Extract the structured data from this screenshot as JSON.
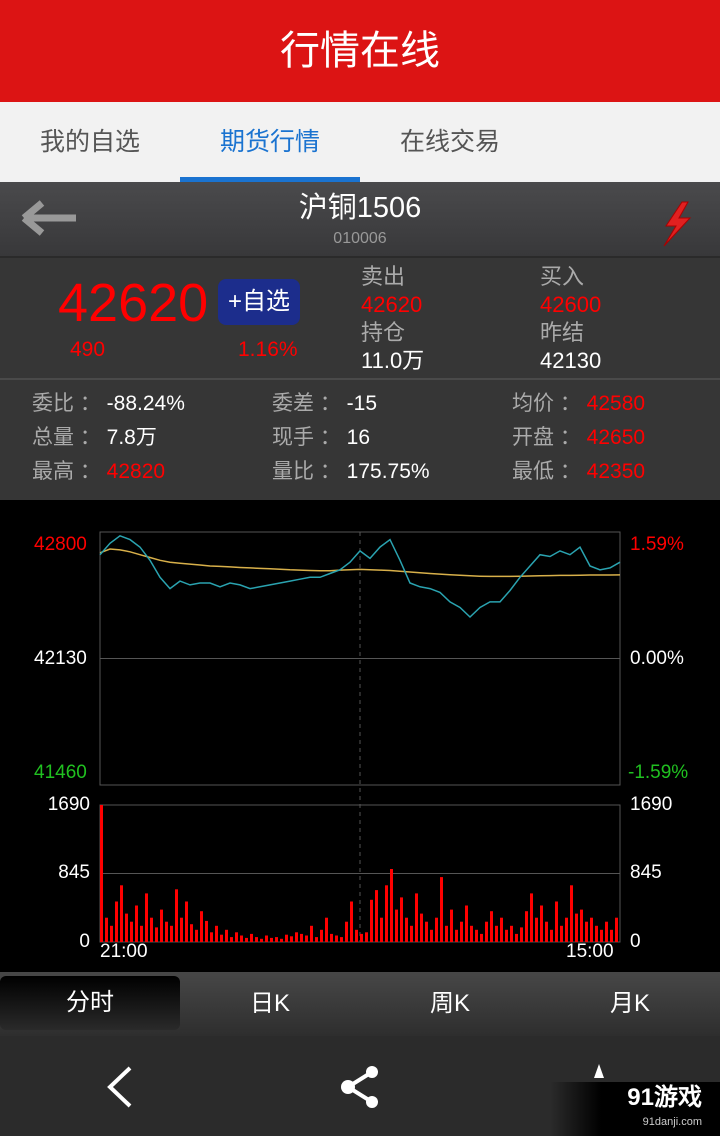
{
  "app": {
    "title": "行情在线"
  },
  "tabs": [
    {
      "label": "我的自选"
    },
    {
      "label": "期货行情",
      "active": true
    },
    {
      "label": "在线交易"
    }
  ],
  "instrument": {
    "name": "沪铜1506",
    "code": "010006",
    "icons": [
      "back-arrow-icon",
      "lightning-icon"
    ]
  },
  "quote": {
    "price": "42620",
    "change": "490",
    "change_pct": "1.16%",
    "add_watch_label": "+自选",
    "sell_label": "卖出",
    "sell": "42620",
    "buy_label": "买入",
    "buy": "42600",
    "oi_label": "持仓",
    "oi": "11.0万",
    "prev_settle_label": "昨结",
    "prev_settle": "42130"
  },
  "stats": [
    {
      "label": "委比",
      "value": "-88.24%",
      "color": "#ffffff"
    },
    {
      "label": "委差",
      "value": "-15",
      "color": "#ffffff"
    },
    {
      "label": "均价",
      "value": "42580",
      "color": "#ff0000"
    },
    {
      "label": "总量",
      "value": "7.8万",
      "color": "#ffffff"
    },
    {
      "label": "现手",
      "value": "16",
      "color": "#ffffff"
    },
    {
      "label": "开盘",
      "value": "42650",
      "color": "#ff0000"
    },
    {
      "label": "最高",
      "value": "42820",
      "color": "#ff0000"
    },
    {
      "label": "量比",
      "value": "175.75%",
      "color": "#ffffff"
    },
    {
      "label": "最低",
      "value": "42350",
      "color": "#ff0000"
    }
  ],
  "chart_data": {
    "type": "line",
    "price_axis": {
      "left_ticks": [
        "42800",
        "42130",
        "41460"
      ],
      "right_ticks": [
        "1.59%",
        "0.00%",
        "-1.59%"
      ],
      "ylim": [
        41460,
        42800
      ]
    },
    "volume_axis": {
      "ticks": [
        "1690",
        "845",
        "0"
      ],
      "ylim": [
        0,
        1690
      ]
    },
    "x_ticks": [
      "21:00",
      "15:00"
    ],
    "price": [
      42680,
      42740,
      42780,
      42760,
      42720,
      42650,
      42560,
      42500,
      42540,
      42520,
      42530,
      42530,
      42510,
      42530,
      42520,
      42500,
      42510,
      42520,
      42530,
      42540,
      42550,
      42560,
      42560,
      42580,
      42600,
      42640,
      42700,
      42660,
      42720,
      42760,
      42650,
      42530,
      42510,
      42500,
      42480,
      42430,
      42400,
      42350,
      42400,
      42430,
      42430,
      42490,
      42560,
      42620,
      42680,
      42670,
      42700,
      42680,
      42720,
      42620,
      42600,
      42610,
      42640
    ],
    "average": [
      42690,
      42710,
      42705,
      42695,
      42680,
      42665,
      42650,
      42640,
      42635,
      42630,
      42625,
      42620,
      42618,
      42615,
      42612,
      42610,
      42607,
      42605,
      42603,
      42600,
      42598,
      42596,
      42595,
      42595,
      42598,
      42600,
      42602,
      42600,
      42598,
      42596,
      42592,
      42588,
      42584,
      42580,
      42577,
      42574,
      42571,
      42568,
      42566,
      42565,
      42565,
      42565,
      42566,
      42567,
      42568,
      42569,
      42570,
      42570,
      42571,
      42572,
      42572,
      42572,
      42573
    ],
    "volume": [
      1690,
      300,
      200,
      500,
      700,
      350,
      250,
      450,
      200,
      600,
      300,
      180,
      400,
      250,
      200,
      650,
      300,
      500,
      220,
      150,
      380,
      260,
      120,
      200,
      90,
      150,
      60,
      120,
      80,
      50,
      100,
      60,
      40,
      80,
      50,
      60,
      40,
      90,
      70,
      120,
      100,
      80,
      200,
      60,
      150,
      300,
      100,
      80,
      60,
      250,
      500,
      150,
      100,
      120,
      520,
      640,
      300,
      700,
      900,
      400,
      550,
      300,
      200,
      600,
      350,
      250,
      150,
      300,
      800,
      200,
      400,
      150,
      250,
      450,
      200,
      150,
      100,
      250,
      380,
      200,
      300,
      150,
      200,
      100,
      180,
      380,
      600,
      300,
      450,
      250,
      150,
      500,
      200,
      300,
      700,
      350,
      400,
      250,
      300,
      200,
      150,
      250,
      150,
      300
    ],
    "colors": {
      "price": "#2aa3b0",
      "average": "#d8b04a",
      "volume": "#ff0000",
      "up": "#ff0000",
      "down": "#20c020",
      "grid": "#555555"
    }
  },
  "periods": [
    {
      "label": "分时",
      "active": true
    },
    {
      "label": "日K"
    },
    {
      "label": "周K"
    },
    {
      "label": "月K"
    }
  ],
  "nav": {
    "icons": [
      "back-chevron-icon",
      "share-icon",
      "star-icon"
    ]
  },
  "watermark": {
    "brand": "91游戏",
    "url": "91danji.com"
  }
}
